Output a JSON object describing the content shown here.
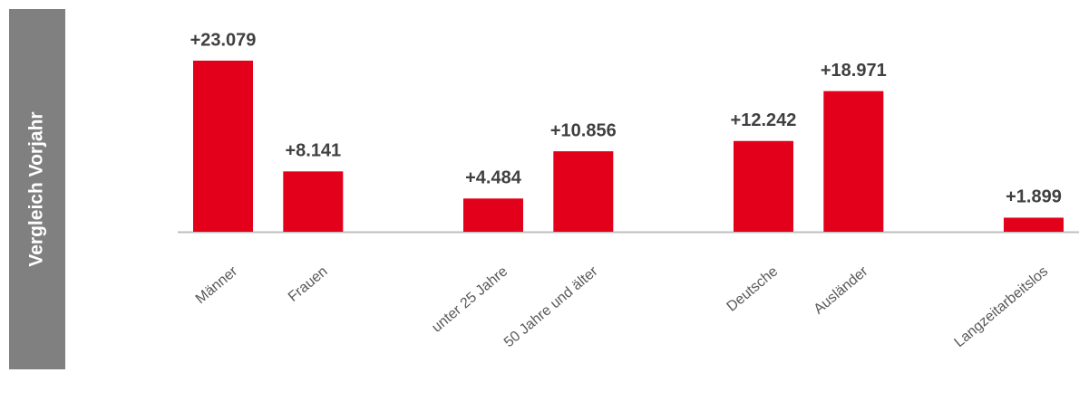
{
  "chart_data": {
    "type": "bar",
    "ylabel": "Vergleich Vorjahr",
    "categories": [
      "Männer",
      "Frauen",
      null,
      "unter 25 Jahre",
      "50 Jahre und älter",
      null,
      "Deutsche",
      "Ausländer",
      null,
      "Langzeitarbeitslos"
    ],
    "values": [
      23079,
      8141,
      null,
      4484,
      10856,
      null,
      12242,
      18971,
      null,
      1899
    ],
    "value_labels": [
      "+23.079",
      "+8.141",
      null,
      "+4.484",
      "+10.856",
      null,
      "+12.242",
      "+18.971",
      null,
      "+1.899"
    ],
    "color": "#e2001a"
  }
}
